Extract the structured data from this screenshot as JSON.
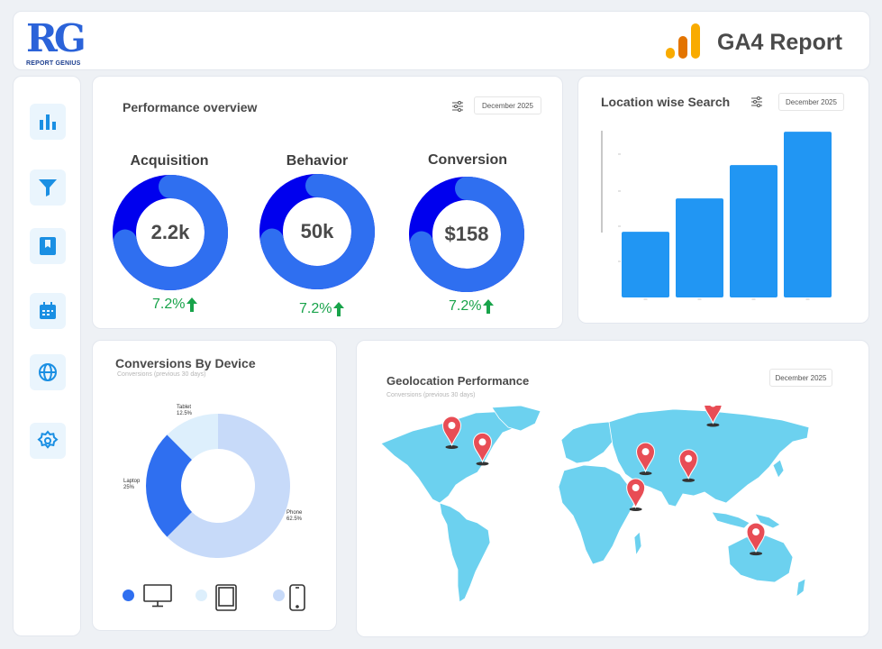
{
  "header": {
    "logo_letters": "RG",
    "logo_subtitle": "REPORT GENIUS",
    "report_title": "GA4 Report",
    "ga_icon": "google-analytics-bars-icon",
    "ga_colors": [
      "#f9ab00",
      "#e37400",
      "#f9ab00"
    ]
  },
  "sidebar": {
    "items": [
      {
        "name": "bar-chart-icon"
      },
      {
        "name": "funnel-icon"
      },
      {
        "name": "bookmark-icon"
      },
      {
        "name": "calendar-icon"
      },
      {
        "name": "globe-icon"
      },
      {
        "name": "settings-gear-icon"
      }
    ],
    "accent": "#1a8fe3"
  },
  "performance": {
    "title": "Performance overview",
    "date": "December 2025",
    "metrics": [
      {
        "label": "Acquisition",
        "value": "2.2k",
        "trend": "7.2%",
        "share": 0.72
      },
      {
        "label": "Behavior",
        "value": "50k",
        "trend": "7.2%",
        "share": 0.72
      },
      {
        "label": "Conversion",
        "value": "$158",
        "trend": "7.2%",
        "share": 0.72
      }
    ],
    "colors": {
      "primary": "#0000ee",
      "secondary": "#2f6ff0",
      "trend": "#18a34a"
    }
  },
  "location": {
    "title": "Location wise Search",
    "date": "December 2025",
    "chart_data": {
      "type": "bar",
      "categories": [
        "",
        "",
        "",
        ""
      ],
      "values": [
        63,
        95,
        127,
        159
      ],
      "ylim": [
        0,
        160
      ],
      "color": "#2196f3",
      "grid": false
    }
  },
  "devices": {
    "title": "Conversions By Device",
    "subtitle": "Conversions (previous 30 days)",
    "chart_data": {
      "type": "pie",
      "donut": true,
      "categories": [
        "Phone",
        "Laptop",
        "Tablet"
      ],
      "values": [
        62.5,
        25,
        12.5
      ],
      "labels": [
        "62.5%",
        "25%",
        "12.5%"
      ],
      "colors": [
        "#c7daf9",
        "#2f6ff0",
        "#ddeffc"
      ]
    },
    "legend": [
      {
        "icon": "desktop-monitor-icon",
        "color": "#2f6ff0"
      },
      {
        "icon": "tablet-icon",
        "color": "#ddeffc"
      },
      {
        "icon": "smartphone-icon",
        "color": "#c7daf9"
      }
    ]
  },
  "geo": {
    "title": "Geolocation Performance",
    "subtitle": "Conversions (previous 30 days)",
    "date": "December 2025",
    "map_color": "#6cd1ef",
    "pin_color": "#e84d55",
    "pins": [
      {
        "name": "map-pin-icon",
        "lat": 52,
        "lon": -115
      },
      {
        "name": "map-pin-icon",
        "lat": 40,
        "lon": -90
      },
      {
        "name": "map-pin-icon",
        "lat": 68,
        "lon": 98
      },
      {
        "name": "map-pin-icon",
        "lat": 33,
        "lon": 43
      },
      {
        "name": "map-pin-icon",
        "lat": 28,
        "lon": 78
      },
      {
        "name": "map-pin-icon",
        "lat": 7,
        "lon": 35
      },
      {
        "name": "map-pin-icon",
        "lat": -25,
        "lon": 133
      }
    ]
  }
}
